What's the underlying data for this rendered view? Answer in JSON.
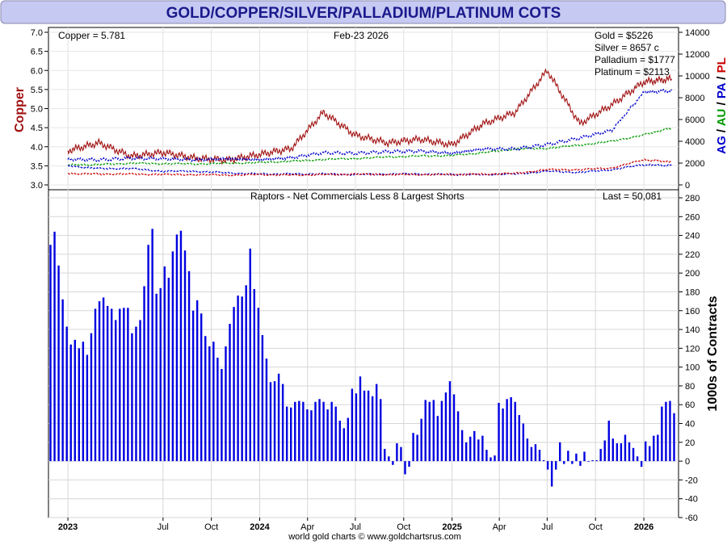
{
  "title": "GOLD/COPPER/SILVER/PALLADIUM/PLATINUM COTS",
  "colors": {
    "banner": "#c6c9f2",
    "banner_text": "#1a1a8c",
    "copper": "#a01010",
    "gold": "#009900",
    "silver": "#0000cc",
    "palladium": "#0000cc",
    "platinum": "#cc0000",
    "bars": "#0000e0"
  },
  "chart_data": [
    {
      "type": "line",
      "name": "prices",
      "date_label": "Feb-23  2026",
      "left_axis": {
        "label": "Copper",
        "ylim": [
          3.0,
          7.0
        ],
        "ticks": [
          "3.0",
          "3.5",
          "4.0",
          "4.5",
          "5.0",
          "5.5",
          "6.0",
          "6.5",
          "7.0"
        ]
      },
      "right_axis": {
        "label_parts": [
          "AG",
          " / ",
          "AU",
          " / ",
          "PA",
          " / ",
          "PL"
        ],
        "label_colors": [
          "#0000cc",
          "#000000",
          "#009900",
          "#000000",
          "#0000cc",
          "#000000",
          "#cc0000"
        ],
        "ylim": [
          0,
          14000
        ],
        "ticks": [
          "0",
          "2000",
          "4000",
          "6000",
          "8000",
          "10000",
          "12000",
          "14000"
        ]
      },
      "readouts": {
        "copper": "Copper = 5.781",
        "gold": "Gold = $5226",
        "silver": "Silver = 8657 c",
        "palladium": "Palladium = $1777",
        "platinum": "Platinum = $2113"
      },
      "x": [
        "2023-01-01",
        "2023-03-01",
        "2023-05-01",
        "2023-07-01",
        "2023-09-01",
        "2023-11-01",
        "2024-01-01",
        "2024-03-01",
        "2024-05-01",
        "2024-07-01",
        "2024-09-01",
        "2024-11-01",
        "2025-01-01",
        "2025-03-01",
        "2025-05-01",
        "2025-07-01",
        "2025-09-01",
        "2025-11-01",
        "2026-01-01",
        "2026-02-23"
      ],
      "series": [
        {
          "key": "copper",
          "axis": "left",
          "dash": false,
          "values": [
            3.9,
            4.1,
            3.75,
            3.85,
            3.7,
            3.65,
            3.8,
            3.95,
            4.9,
            4.3,
            4.1,
            4.2,
            4.05,
            4.6,
            4.9,
            6.0,
            4.6,
            5.1,
            5.7,
            5.78
          ]
        },
        {
          "key": "gold",
          "axis": "right",
          "dash": true,
          "values": [
            1830,
            1860,
            1990,
            1950,
            1920,
            1980,
            2050,
            2170,
            2330,
            2420,
            2560,
            2650,
            2700,
            2950,
            3300,
            3350,
            3650,
            4000,
            4600,
            5226
          ]
        },
        {
          "key": "silver",
          "axis": "right",
          "dash": true,
          "values": [
            2350,
            2300,
            2450,
            2400,
            2300,
            2400,
            2300,
            2500,
            2950,
            2900,
            3050,
            3100,
            2900,
            3300,
            3300,
            3700,
            4300,
            5000,
            8500,
            8657
          ]
        },
        {
          "key": "palladium",
          "axis": "right",
          "dash": true,
          "values": [
            1750,
            1500,
            1500,
            1250,
            1250,
            1100,
            1000,
            1000,
            1000,
            950,
            1000,
            1000,
            950,
            950,
            1000,
            1250,
            1150,
            1400,
            1850,
            1777
          ]
        },
        {
          "key": "platinum",
          "axis": "right",
          "dash": true,
          "values": [
            1050,
            1000,
            1000,
            950,
            950,
            900,
            950,
            900,
            950,
            980,
            950,
            950,
            950,
            980,
            1050,
            1400,
            1400,
            1550,
            2300,
            2113
          ]
        }
      ]
    },
    {
      "type": "bar",
      "name": "raptors",
      "title": "Raptors - Net Commercials Less 8 Largest Shorts",
      "last_label": "Last = 50,081",
      "ylabel": "1000s of Contracts",
      "ylim": [
        -60,
        280
      ],
      "ticks": [
        "-60",
        "-40",
        "-20",
        "0",
        "20",
        "40",
        "60",
        "80",
        "100",
        "120",
        "140",
        "160",
        "180",
        "200",
        "220",
        "240",
        "260",
        "280"
      ],
      "x_labels": [
        "2023",
        "Jul",
        "Oct",
        "2024",
        "Apr",
        "Jul",
        "Oct",
        "2025",
        "Apr",
        "Jul",
        "Oct",
        "2026"
      ],
      "x_label_bold": [
        true,
        false,
        false,
        true,
        false,
        false,
        false,
        true,
        false,
        false,
        false,
        true
      ],
      "values": [
        230,
        244,
        208,
        172,
        143,
        124,
        129,
        120,
        127,
        113,
        136,
        162,
        170,
        174,
        165,
        162,
        150,
        162,
        163,
        163,
        136,
        143,
        150,
        186,
        230,
        247,
        178,
        184,
        207,
        195,
        223,
        241,
        245,
        224,
        202,
        160,
        171,
        157,
        133,
        122,
        127,
        110,
        98,
        122,
        146,
        164,
        176,
        175,
        187,
        226,
        183,
        163,
        134,
        109,
        84,
        85,
        93,
        82,
        58,
        57,
        63,
        64,
        63,
        55,
        54,
        63,
        66,
        63,
        55,
        63,
        58,
        43,
        35,
        46,
        77,
        72,
        90,
        75,
        75,
        69,
        82,
        66,
        13,
        5,
        -4,
        19,
        15,
        -14,
        -6,
        30,
        28,
        45,
        65,
        63,
        65,
        48,
        64,
        73,
        85,
        71,
        53,
        33,
        20,
        26,
        32,
        23,
        27,
        12,
        4,
        6,
        62,
        56,
        66,
        68,
        63,
        49,
        40,
        24,
        15,
        18,
        12,
        1,
        -9,
        -27,
        -9,
        20,
        -3,
        11,
        -3,
        8,
        -5,
        10,
        0,
        1,
        1,
        13,
        22,
        43,
        24,
        19,
        19,
        28,
        20,
        14,
        5,
        -6,
        21,
        16,
        27,
        28,
        58,
        63,
        64,
        51
      ],
      "footer": "world gold charts © www.goldchartsrus.com"
    }
  ]
}
